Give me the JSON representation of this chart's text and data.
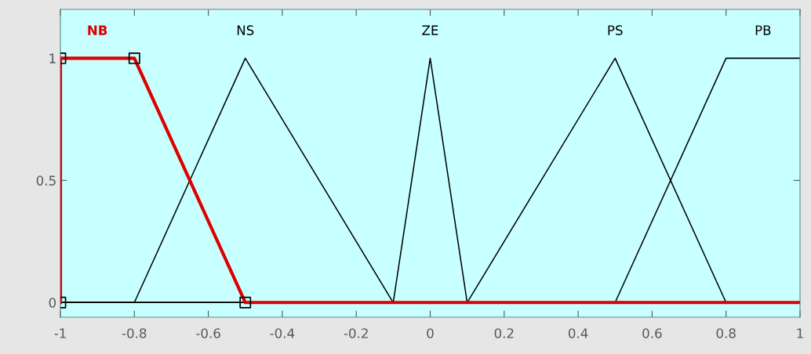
{
  "chart_data": {
    "type": "line",
    "xlim": [
      -1,
      1
    ],
    "ylim": [
      -0.06,
      1.2
    ],
    "xticks": [
      -1,
      -0.8,
      -0.6,
      -0.4,
      -0.2,
      0,
      0.2,
      0.4,
      0.6,
      0.8,
      1
    ],
    "yticks": [
      0,
      0.5,
      1
    ],
    "grid": false,
    "legend": false,
    "line_style": "solid",
    "series": [
      {
        "name": "NS",
        "color": "#000000",
        "x": [
          -1,
          -0.8,
          -0.5,
          -0.1,
          1
        ],
        "values": [
          0,
          0,
          1,
          0,
          0
        ]
      },
      {
        "name": "ZE",
        "color": "#000000",
        "x": [
          -1,
          -0.1,
          0,
          0.1,
          1
        ],
        "values": [
          0,
          0,
          1,
          0,
          0
        ]
      },
      {
        "name": "PS",
        "color": "#000000",
        "x": [
          -1,
          0.1,
          0.5,
          0.8,
          1
        ],
        "values": [
          0,
          0,
          1,
          0,
          0
        ]
      },
      {
        "name": "PB",
        "color": "#000000",
        "x": [
          -1,
          0.5,
          0.8,
          1
        ],
        "values": [
          0,
          0,
          1,
          1
        ]
      },
      {
        "name": "NB",
        "color": "#dd0000",
        "x": [
          -1,
          -1,
          -0.8,
          -0.5,
          1
        ],
        "values": [
          0,
          1,
          1,
          0,
          0
        ]
      },
      {
        "type": "scatter",
        "marker": "square",
        "color": "#000000",
        "x": [
          -1,
          -1,
          -0.8,
          -0.5
        ],
        "values": [
          0,
          1,
          1,
          0
        ]
      }
    ]
  }
}
